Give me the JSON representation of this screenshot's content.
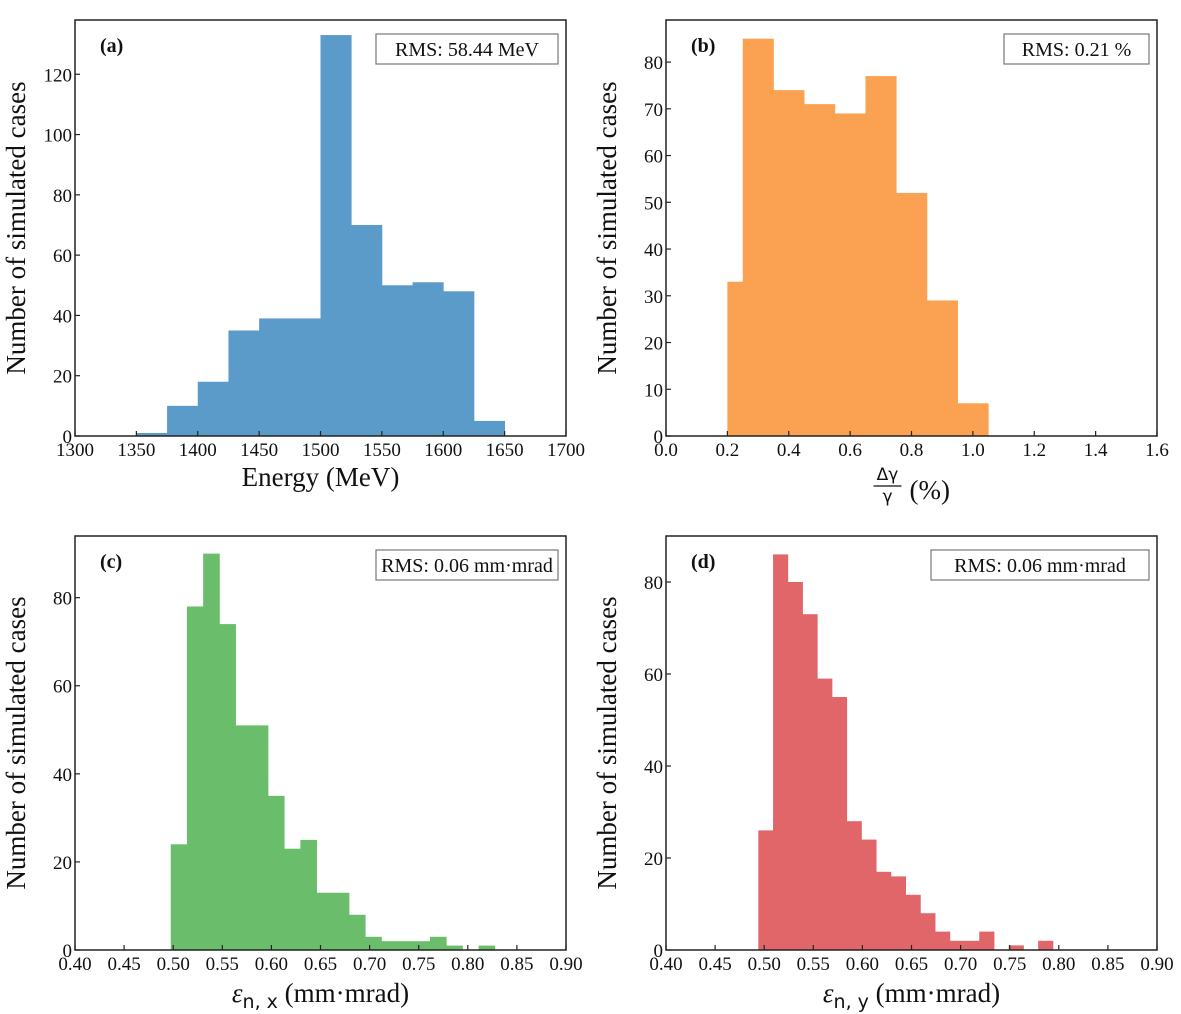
{
  "figure": {
    "ylabel": "Number of simulated cases"
  },
  "chart_data": [
    {
      "type": "bar",
      "histogram": true,
      "panel": "(a)",
      "annotation": "RMS: 58.44 MeV",
      "xlabel": "Energy (MeV)",
      "ylabel": "Number of simulated cases",
      "color": "#5b9bc9",
      "xlim": [
        1300,
        1700
      ],
      "ylim": [
        0,
        138
      ],
      "xticks": [
        1300,
        1350,
        1400,
        1450,
        1500,
        1550,
        1600,
        1650,
        1700
      ],
      "xtick_labels": [
        "1300",
        "1350",
        "1400",
        "1450",
        "1500",
        "1550",
        "1600",
        "1650",
        "1700"
      ],
      "yticks": [
        0,
        20,
        40,
        60,
        80,
        100,
        120
      ],
      "ytick_labels": [
        "0",
        "20",
        "40",
        "60",
        "80",
        "100",
        "120"
      ],
      "bin_edges": [
        1350,
        1375,
        1400,
        1425,
        1450,
        1475,
        1500,
        1525,
        1550,
        1575,
        1600,
        1625,
        1650
      ],
      "values": [
        1,
        10,
        18,
        35,
        39,
        39,
        133,
        70,
        50,
        51,
        48,
        5
      ],
      "grid": false
    },
    {
      "type": "bar",
      "histogram": true,
      "panel": "(b)",
      "annotation": "RMS: 0.21 %",
      "xlabel_num": "Δγ",
      "xlabel_den": "γ",
      "xlabel_unit": "(%)",
      "ylabel": "Number of simulated cases",
      "color": "#fba152",
      "xlim": [
        0.0,
        1.6
      ],
      "ylim": [
        0,
        89
      ],
      "xticks": [
        0.0,
        0.2,
        0.4,
        0.6,
        0.8,
        1.0,
        1.2,
        1.4,
        1.6
      ],
      "xtick_labels": [
        "0.0",
        "0.2",
        "0.4",
        "0.6",
        "0.8",
        "1.0",
        "1.2",
        "1.4",
        "1.6"
      ],
      "yticks": [
        0,
        10,
        20,
        30,
        40,
        50,
        60,
        70,
        80
      ],
      "ytick_labels": [
        "0",
        "10",
        "20",
        "30",
        "40",
        "50",
        "60",
        "70",
        "80"
      ],
      "bin_edges": [
        0.2,
        0.25,
        0.35,
        0.45,
        0.55,
        0.65,
        0.75,
        0.85,
        0.95,
        1.05
      ],
      "values": [
        33,
        85,
        74,
        71,
        69,
        77,
        52,
        29,
        7
      ],
      "grid": false
    },
    {
      "type": "bar",
      "histogram": true,
      "panel": "(c)",
      "annotation": "RMS: 0.06 mm·mrad",
      "xlabel_sym": "ε",
      "xlabel_sub": "n, x",
      "xlabel_unit": " (mm·mrad)",
      "ylabel": "Number of simulated cases",
      "color": "#6abd6a",
      "xlim": [
        0.4,
        0.9
      ],
      "ylim": [
        0,
        94
      ],
      "xticks": [
        0.4,
        0.45,
        0.5,
        0.55,
        0.6,
        0.65,
        0.7,
        0.75,
        0.8,
        0.85,
        0.9
      ],
      "xtick_labels": [
        "0.40",
        "0.45",
        "0.50",
        "0.55",
        "0.60",
        "0.65",
        "0.70",
        "0.75",
        "0.80",
        "0.85",
        "0.90"
      ],
      "yticks": [
        0,
        20,
        40,
        60,
        80
      ],
      "ytick_labels": [
        "0",
        "20",
        "40",
        "60",
        "80"
      ],
      "bin_start": 0.4975,
      "bin_width": 0.0165,
      "values": [
        24,
        78,
        90,
        74,
        51,
        51,
        35,
        23,
        25,
        13,
        13,
        8,
        3,
        2,
        2,
        2,
        3,
        1,
        0,
        1
      ],
      "grid": false
    },
    {
      "type": "bar",
      "histogram": true,
      "panel": "(d)",
      "annotation": "RMS: 0.06 mm·mrad",
      "xlabel_sym": "ε",
      "xlabel_sub": "n, y",
      "xlabel_unit": " (mm·mrad)",
      "ylabel": "Number of simulated cases",
      "color": "#e0666a",
      "xlim": [
        0.4,
        0.9
      ],
      "ylim": [
        0,
        90
      ],
      "xticks": [
        0.4,
        0.45,
        0.5,
        0.55,
        0.6,
        0.65,
        0.7,
        0.75,
        0.8,
        0.85,
        0.9
      ],
      "xtick_labels": [
        "0.40",
        "0.45",
        "0.50",
        "0.55",
        "0.60",
        "0.65",
        "0.70",
        "0.75",
        "0.80",
        "0.85",
        "0.90"
      ],
      "yticks": [
        0,
        20,
        40,
        60,
        80
      ],
      "ytick_labels": [
        "0",
        "20",
        "40",
        "60",
        "80"
      ],
      "bin_start": 0.494,
      "bin_width": 0.015,
      "values": [
        26,
        86,
        80,
        73,
        59,
        55,
        28,
        24,
        17,
        16,
        12,
        8,
        4,
        2,
        2,
        4,
        0,
        1,
        0,
        2
      ],
      "grid": false
    }
  ]
}
